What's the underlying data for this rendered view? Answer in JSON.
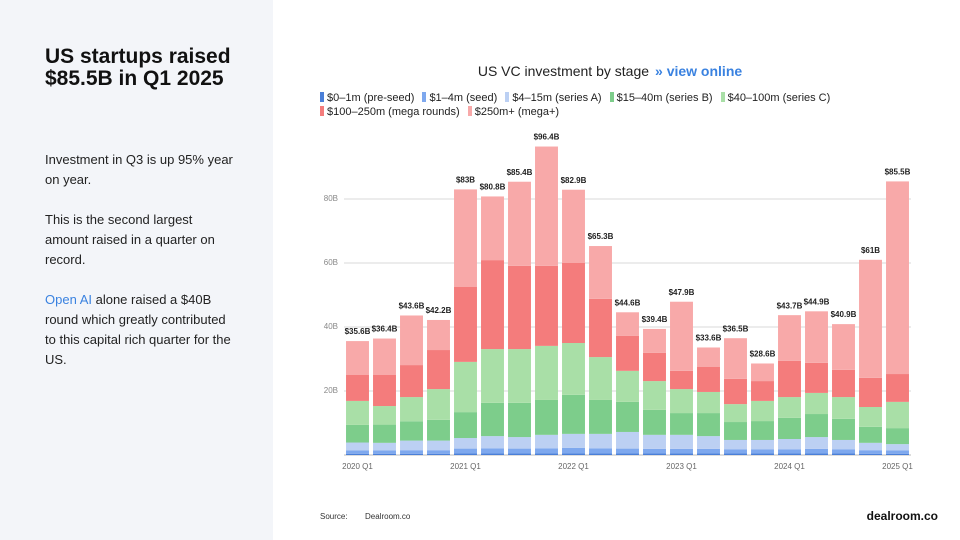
{
  "panel": {
    "headline": "US startups raised $85.5B in Q1 2025",
    "paragraphs": [
      "Investment in Q3 is up 95% year on year.",
      "This is the second largest amount raised in a quarter on record."
    ],
    "link": "Open AI",
    "link_text": " alone raised a $40B round which greatly contributed to this capital rich quarter for the US."
  },
  "footer": {
    "source_label": "Source:",
    "source": "Dealroom.co",
    "logo": "dealroom.co"
  },
  "chart_data": {
    "type": "stacked-bar",
    "title": "US VC investment by stage",
    "link": "» view online",
    "categories": [
      "2020 Q1",
      null,
      null,
      null,
      "2021 Q1",
      null,
      null,
      null,
      "2022 Q1",
      null,
      null,
      null,
      "2023 Q1",
      null,
      null,
      null,
      "2024 Q1",
      null,
      null,
      null,
      "2025 Q1"
    ],
    "ylim": [
      0,
      100
    ],
    "yticks": [
      {
        "value": 20,
        "label": "20B"
      },
      {
        "value": 40,
        "label": "40B"
      },
      {
        "value": 60,
        "label": "60B"
      },
      {
        "value": 80,
        "label": "80B"
      }
    ],
    "grid": true,
    "series": [
      {
        "name": "$0–1m (pre-seed)",
        "color": "#4a7fd8",
        "values": [
          0.4,
          0.4,
          0.4,
          0.4,
          0.5,
          0.5,
          0.5,
          0.5,
          0.5,
          0.5,
          0.5,
          0.5,
          0.5,
          0.5,
          0.5,
          0.5,
          0.5,
          0.5,
          0.5,
          0.4,
          0.4
        ]
      },
      {
        "name": "$1–4m (seed)",
        "color": "#7ea8ee",
        "values": [
          1.0,
          1.0,
          1.1,
          1.1,
          1.5,
          1.6,
          1.5,
          1.6,
          1.7,
          1.6,
          1.5,
          1.4,
          1.4,
          1.4,
          1.3,
          1.3,
          1.3,
          1.4,
          1.3,
          1.1,
          1.0
        ]
      },
      {
        "name": "$4–15m (series A)",
        "color": "#bcd0f3",
        "values": [
          2.5,
          2.4,
          3.0,
          3.0,
          3.3,
          3.8,
          3.6,
          4.2,
          4.4,
          4.5,
          5.2,
          4.4,
          4.4,
          4.0,
          2.9,
          2.9,
          3.2,
          3.7,
          2.9,
          2.3,
          2.0
        ]
      },
      {
        "name": "$15–40m (series B)",
        "color": "#7dcd8b",
        "values": [
          5.5,
          5.7,
          6.0,
          6.5,
          8.1,
          10.4,
          10.7,
          10.9,
          12.2,
          10.6,
          9.4,
          7.8,
          6.8,
          7.2,
          5.6,
          5.9,
          6.6,
          7.2,
          6.6,
          5.0,
          5.0
        ]
      },
      {
        "name": "$40–100m (series C)",
        "color": "#a9dfa7",
        "values": [
          7.5,
          5.8,
          7.6,
          9.6,
          15.7,
          16.8,
          16.8,
          16.9,
          16.2,
          13.4,
          9.7,
          9.0,
          7.5,
          6.6,
          5.6,
          6.3,
          6.5,
          6.6,
          6.8,
          6.2,
          8.2
        ]
      },
      {
        "name": "$100–250m (mega rounds)",
        "color": "#f47c7c",
        "values": [
          8.1,
          9.7,
          10.0,
          12.2,
          23.4,
          27.8,
          26.0,
          25.0,
          25.0,
          18.2,
          10.9,
          8.8,
          5.7,
          7.8,
          7.9,
          6.2,
          11.3,
          9.4,
          8.5,
          9.1,
          8.7
        ]
      },
      {
        "name": "$250m+ (mega+)",
        "color": "#f8a9a9",
        "values": [
          10.6,
          11.4,
          15.5,
          9.4,
          30.5,
          19.9,
          26.3,
          37.3,
          22.9,
          16.5,
          7.4,
          7.5,
          21.6,
          6.1,
          12.7,
          5.5,
          14.3,
          16.1,
          14.3,
          36.9,
          60.2
        ]
      }
    ],
    "totals": {
      "values": [
        35.6,
        36.4,
        43.6,
        42.2,
        83,
        80.8,
        85.4,
        96.4,
        82.9,
        65.3,
        44.6,
        39.4,
        47.9,
        33.6,
        36.5,
        28.6,
        43.7,
        44.9,
        40.9,
        61,
        85.5
      ],
      "value_labels": [
        "$35.6B",
        "$36.4B",
        "$43.6B",
        "$42.2B",
        "$83B",
        "$80.8B",
        "$85.4B",
        "$96.4B",
        "$82.9B",
        "$65.3B",
        "$44.6B",
        "$39.4B",
        "$47.9B",
        "$33.6B",
        "$36.5B",
        "$28.6B",
        "$43.7B",
        "$44.9B",
        "$40.9B",
        "$61B",
        "$85.5B"
      ]
    }
  }
}
